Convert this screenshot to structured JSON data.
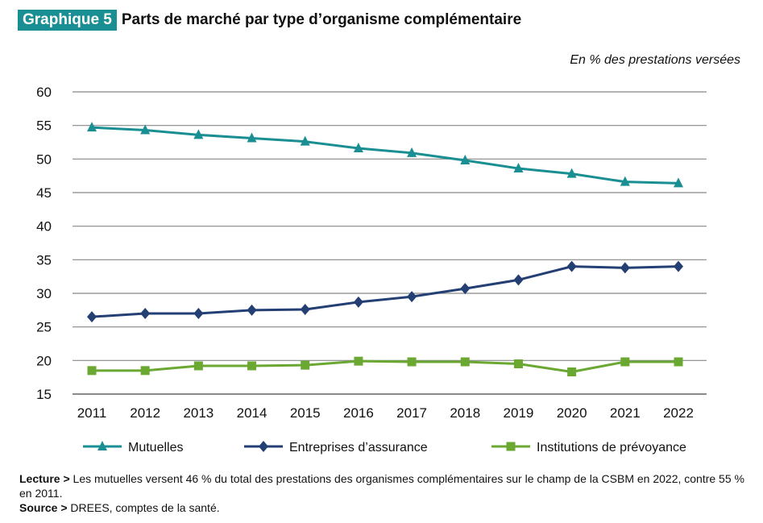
{
  "header": {
    "tag": "Graphique 5",
    "title": "Parts de marché par type d’organisme complémentaire"
  },
  "chart_data": {
    "type": "line",
    "unit_label": "En % des prestations versées",
    "categories": [
      "2011",
      "2012",
      "2013",
      "2014",
      "2015",
      "2016",
      "2017",
      "2018",
      "2019",
      "2020",
      "2021",
      "2022"
    ],
    "ylim": [
      15,
      60
    ],
    "yticks": [
      15,
      20,
      25,
      30,
      35,
      40,
      45,
      50,
      55,
      60
    ],
    "grid": true,
    "legend": "bottom",
    "series": [
      {
        "name": "Mutuelles",
        "color": "#1a8f93",
        "marker": "triangle",
        "values": [
          54.7,
          54.3,
          53.6,
          53.1,
          52.6,
          51.6,
          50.9,
          49.8,
          48.6,
          47.8,
          46.6,
          46.4
        ]
      },
      {
        "name": "Entreprises d’assurance",
        "color": "#243f73",
        "marker": "diamond",
        "values": [
          26.5,
          27.0,
          27.0,
          27.5,
          27.6,
          28.7,
          29.5,
          30.7,
          32.0,
          34.0,
          33.8,
          34.0
        ]
      },
      {
        "name": "Institutions de prévoyance",
        "color": "#6aa832",
        "marker": "square",
        "values": [
          18.5,
          18.5,
          19.2,
          19.2,
          19.3,
          19.9,
          19.8,
          19.8,
          19.5,
          18.3,
          19.8,
          19.8
        ]
      }
    ]
  },
  "notes": {
    "lecture_label": "Lecture >",
    "lecture_text": " Les mutuelles versent 46 % du total des prestations des organismes complémentaires sur le champ de la CSBM en 2022, contre 55 % en 2011.",
    "source_label": "Source >",
    "source_text": " DREES, comptes de la santé."
  }
}
